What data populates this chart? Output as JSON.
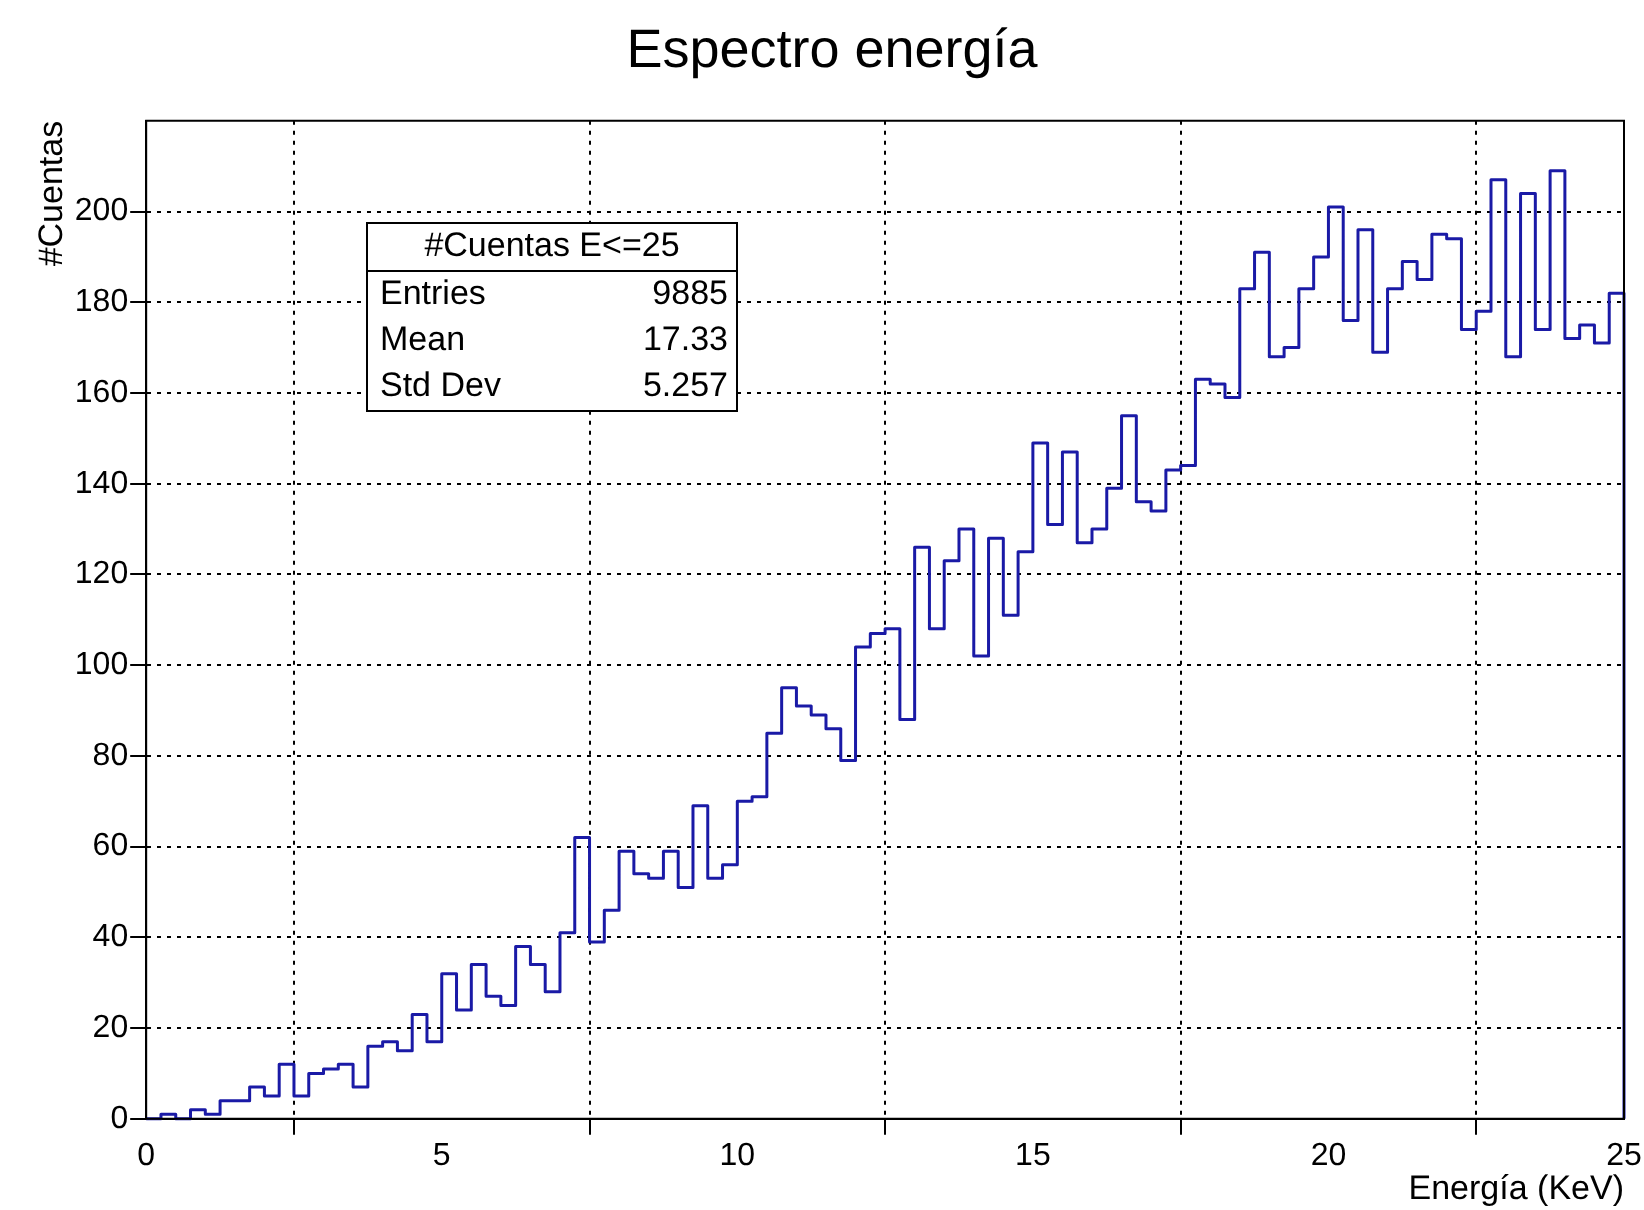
{
  "chart_data": {
    "type": "histogram",
    "title": "Espectro energía",
    "xlabel": "Energía (KeV)",
    "ylabel": "#Cuentas",
    "bins": [
      0,
      0.25,
      0.5,
      0.75,
      1,
      1.25,
      1.5,
      1.75,
      2,
      2.25,
      2.5,
      2.75,
      3,
      3.25,
      3.5,
      3.75,
      4,
      4.25,
      4.5,
      4.75,
      5,
      5.25,
      5.5,
      5.75,
      6,
      6.25,
      6.5,
      6.75,
      7,
      7.25,
      7.5,
      7.75,
      8,
      8.25,
      8.5,
      8.75,
      9,
      9.25,
      9.5,
      9.75,
      10,
      10.25,
      10.5,
      10.75,
      11,
      11.25,
      11.5,
      11.75,
      12,
      12.25,
      12.5,
      12.75,
      13,
      13.25,
      13.5,
      13.75,
      14,
      14.25,
      14.5,
      14.75,
      15,
      15.25,
      15.5,
      15.75,
      16,
      16.25,
      16.5,
      16.75,
      17,
      17.25,
      17.5,
      17.75,
      18,
      18.25,
      18.5,
      18.75,
      19,
      19.25,
      19.5,
      19.75,
      20,
      20.25,
      20.5,
      20.75,
      21,
      21.25,
      21.5,
      21.75,
      22,
      22.25,
      22.5,
      22.75,
      23,
      23.25,
      23.5,
      23.75,
      24,
      24.25,
      24.5,
      24.75,
      25
    ],
    "values": [
      0,
      1,
      0,
      2,
      1,
      4,
      4,
      7,
      5,
      12,
      5,
      10,
      11,
      12,
      7,
      16,
      17,
      15,
      23,
      17,
      32,
      24,
      34,
      27,
      25,
      38,
      34,
      28,
      41,
      62,
      39,
      46,
      59,
      54,
      53,
      59,
      51,
      69,
      53,
      56,
      70,
      71,
      85,
      95,
      91,
      89,
      86,
      79,
      104,
      107,
      108,
      88,
      126,
      108,
      123,
      130,
      102,
      128,
      111,
      125,
      149,
      131,
      147,
      127,
      130,
      139,
      155,
      136,
      134,
      143,
      144,
      163,
      162,
      159,
      183,
      191,
      168,
      170,
      183,
      190,
      201,
      176,
      196,
      169,
      183,
      189,
      185,
      195,
      194,
      174,
      178,
      207,
      168,
      204,
      174,
      209,
      172,
      175,
      171,
      182
    ],
    "color": "#1a1aa6",
    "xlim": [
      0,
      25
    ],
    "xticks": [
      0,
      5,
      10,
      15,
      20,
      25
    ],
    "ylim": [
      0,
      220
    ],
    "yticks": [
      0,
      20,
      40,
      60,
      80,
      100,
      120,
      140,
      160,
      180,
      200
    ],
    "grid": true,
    "legend": false,
    "annotations": [
      "#Cuentas E<=25",
      "Entries",
      "9885",
      "Mean",
      "17.33",
      "Std Dev",
      "5.257"
    ]
  }
}
